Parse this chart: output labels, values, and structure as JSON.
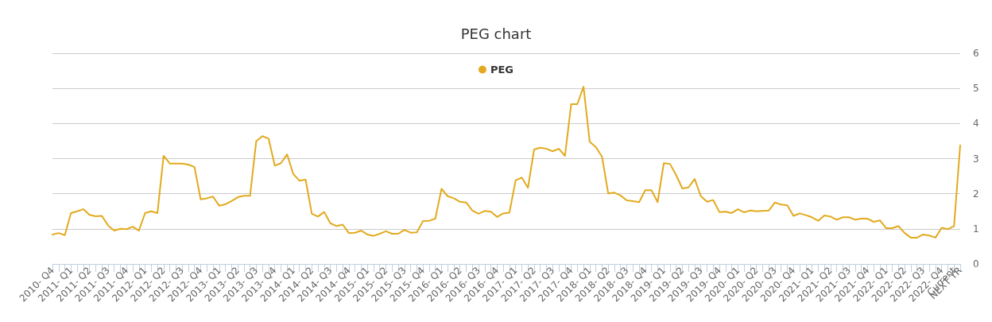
{
  "chart_data": {
    "type": "line",
    "title": "PEG chart",
    "categories": [
      "2010- Q4",
      null,
      null,
      "2011- Q1",
      null,
      null,
      "2011- Q2",
      null,
      null,
      "2011- Q3",
      null,
      null,
      "2011- Q4",
      null,
      null,
      "2012- Q1",
      null,
      null,
      "2012- Q2",
      null,
      null,
      "2012- Q3",
      null,
      null,
      "2012- Q4",
      null,
      null,
      "2013- Q1",
      null,
      null,
      "2013- Q2",
      null,
      null,
      "2013- Q3",
      null,
      null,
      "2013- Q4",
      null,
      null,
      "2014- Q1",
      null,
      null,
      "2014- Q2",
      null,
      null,
      "2014- Q3",
      null,
      null,
      "2014- Q4",
      null,
      null,
      "2015- Q1",
      null,
      null,
      "2015- Q2",
      null,
      null,
      "2015- Q3",
      null,
      null,
      "2015- Q4",
      null,
      null,
      "2016- Q1",
      null,
      null,
      "2016- Q2",
      null,
      null,
      "2016- Q3",
      null,
      null,
      "2016- Q4",
      null,
      null,
      "2017- Q1",
      null,
      null,
      "2017- Q2",
      null,
      null,
      "2017- Q3",
      null,
      null,
      "2017- Q4",
      null,
      null,
      "2018- Q1",
      null,
      null,
      "2018- Q2",
      null,
      null,
      "2018- Q3",
      null,
      null,
      "2018- Q4",
      null,
      null,
      "2019- Q1",
      null,
      null,
      "2019- Q2",
      null,
      null,
      "2019- Q3",
      null,
      null,
      "2019- Q4",
      null,
      null,
      "2020- Q1",
      null,
      null,
      "2020- Q2",
      null,
      null,
      "2020- Q3",
      null,
      null,
      "2020- Q4",
      null,
      null,
      "2021- Q1",
      null,
      null,
      "2021- Q2",
      null,
      null,
      "2021- Q3",
      null,
      null,
      "2021- Q4",
      null,
      null,
      "2022- Q1",
      null,
      null,
      "2022- Q2",
      null,
      null,
      "2022- Q3",
      null,
      null,
      "2022- Q4",
      null,
      "Current",
      "NEXT YR"
    ],
    "series": [
      {
        "name": "PEG",
        "color": "#e2aa1e",
        "values": [
          0.84,
          0.88,
          0.82,
          1.45,
          1.5,
          1.56,
          1.4,
          1.36,
          1.37,
          1.1,
          0.95,
          1.0,
          0.99,
          1.06,
          0.95,
          1.45,
          1.5,
          1.45,
          3.08,
          2.86,
          2.86,
          2.86,
          2.83,
          2.76,
          1.84,
          1.87,
          1.92,
          1.66,
          1.7,
          1.79,
          1.9,
          1.94,
          1.94,
          3.5,
          3.64,
          3.57,
          2.8,
          2.87,
          3.12,
          2.56,
          2.37,
          2.4,
          1.43,
          1.35,
          1.48,
          1.16,
          1.08,
          1.12,
          0.88,
          0.89,
          0.95,
          0.84,
          0.8,
          0.86,
          0.93,
          0.86,
          0.86,
          0.97,
          0.89,
          0.9,
          1.22,
          1.23,
          1.29,
          2.14,
          1.93,
          1.87,
          1.77,
          1.75,
          1.52,
          1.43,
          1.51,
          1.49,
          1.34,
          1.44,
          1.46,
          2.38,
          2.46,
          2.17,
          3.26,
          3.31,
          3.28,
          3.21,
          3.28,
          3.08,
          4.55,
          4.55,
          5.05,
          3.48,
          3.33,
          3.05,
          2.01,
          2.03,
          1.95,
          1.81,
          1.79,
          1.76,
          2.1,
          2.1,
          1.76,
          2.87,
          2.85,
          2.53,
          2.15,
          2.18,
          2.42,
          1.93,
          1.77,
          1.82,
          1.48,
          1.49,
          1.45,
          1.56,
          1.47,
          1.52,
          1.5,
          1.51,
          1.52,
          1.75,
          1.69,
          1.67,
          1.37,
          1.44,
          1.39,
          1.33,
          1.23,
          1.38,
          1.35,
          1.26,
          1.33,
          1.33,
          1.26,
          1.29,
          1.29,
          1.2,
          1.24,
          1.02,
          1.02,
          1.08,
          0.88,
          0.75,
          0.75,
          0.84,
          0.81,
          0.75,
          1.03,
          0.99,
          1.08,
          3.38
        ]
      }
    ],
    "ylim": [
      0,
      6
    ],
    "yticks": [
      0,
      1,
      2,
      3,
      4,
      5,
      6
    ],
    "grid": "y",
    "legend": "top",
    "marker": "none",
    "line_style": "solid"
  }
}
